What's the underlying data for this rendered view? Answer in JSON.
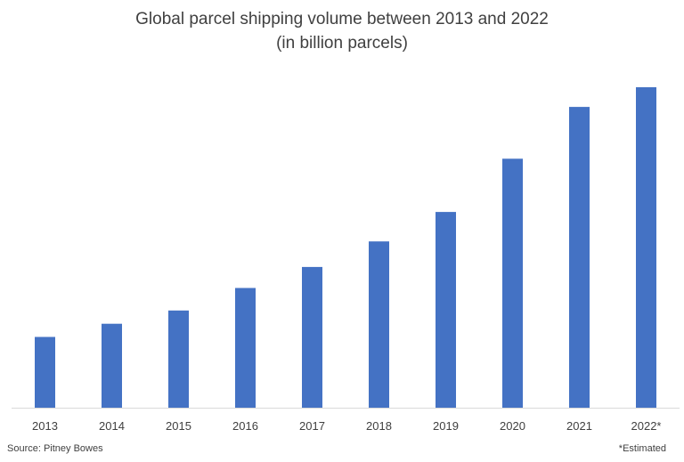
{
  "chart_data": {
    "type": "bar",
    "title": "Global parcel shipping volume between 2013 and 2022",
    "subtitle": "(in billion parcels)",
    "categories": [
      "2013",
      "2014",
      "2015",
      "2016",
      "2017",
      "2018",
      "2019",
      "2020",
      "2021",
      "2022*"
    ],
    "values": [
      41.1,
      48.7,
      56.4,
      69.5,
      81.7,
      96.5,
      113.6,
      144.5,
      174.6,
      186.0
    ],
    "ylim": [
      0,
      186.0
    ],
    "grid": false,
    "legend": "none",
    "bar_color": "#4472C4",
    "axis_color": "#D9D9D9"
  },
  "footer": {
    "source": "Source: Pitney Bowes",
    "footnote": "*Estimated"
  }
}
